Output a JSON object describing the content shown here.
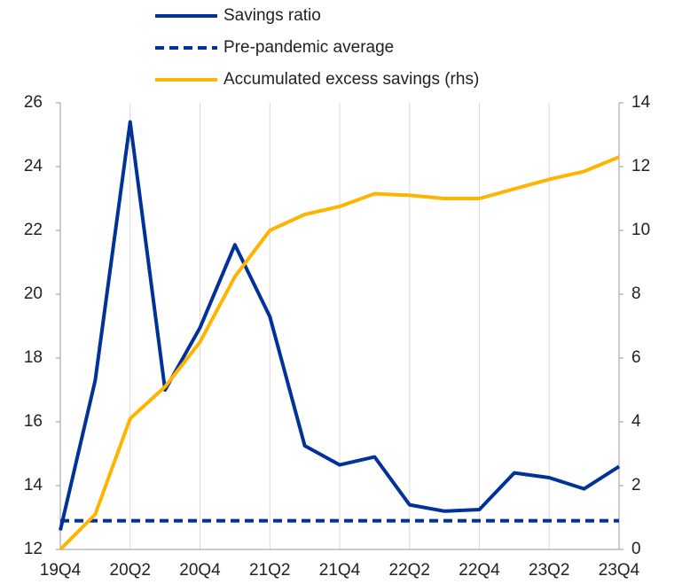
{
  "chart_data": {
    "type": "line",
    "categories": [
      "19Q4",
      null,
      "20Q2",
      null,
      "20Q4",
      null,
      "21Q2",
      null,
      "21Q4",
      null,
      "22Q2",
      null,
      "22Q4",
      null,
      "23Q2",
      null,
      "23Q4"
    ],
    "series": [
      {
        "name": "Savings ratio",
        "color": "#003299",
        "line_style": "solid",
        "values": [
          12.6,
          17.3,
          25.4,
          17.0,
          18.95,
          21.55,
          19.3,
          15.25,
          14.65,
          14.9,
          13.4,
          13.2,
          13.25,
          14.4,
          14.25,
          13.9,
          14.6
        ]
      },
      {
        "name": "Pre-pandemic average",
        "color": "#003299",
        "line_style": "dashed",
        "values": [
          12.9,
          12.9,
          12.9,
          12.9,
          12.9,
          12.9,
          12.9,
          12.9,
          12.9,
          12.9,
          12.9,
          12.9,
          12.9,
          12.9,
          12.9,
          12.9,
          12.9
        ]
      },
      {
        "name": "Accumulated excess savings (rhs)",
        "color": "#ffb400",
        "line_style": "solid",
        "axis": "y2",
        "values": [
          0,
          1.1,
          4.1,
          5.1,
          6.5,
          8.55,
          10.0,
          10.5,
          10.75,
          11.15,
          11.1,
          11.0,
          11.0,
          11.3,
          11.6,
          11.85,
          12.3
        ]
      }
    ],
    "ylim": [
      12,
      26
    ],
    "yticks": [
      12,
      14,
      16,
      18,
      20,
      22,
      24,
      26
    ],
    "y2lim": [
      0,
      14
    ],
    "y2ticks": [
      0,
      2,
      4,
      6,
      8,
      10,
      12,
      14
    ],
    "grid": "x"
  }
}
